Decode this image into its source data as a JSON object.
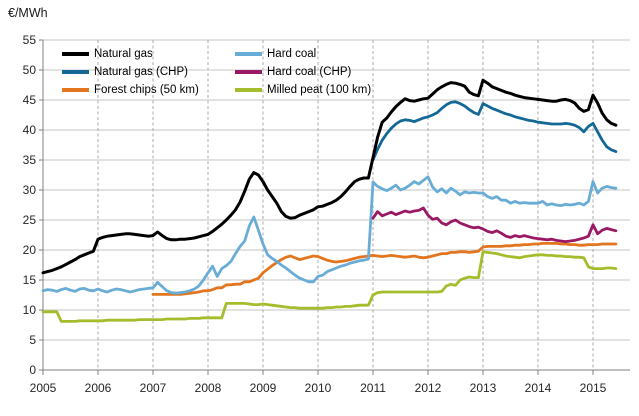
{
  "chart_data": {
    "type": "line",
    "unit_label": "€/MWh",
    "interval": "monthly",
    "x_axis": {
      "tick_years": [
        2005,
        2006,
        2007,
        2008,
        2009,
        2010,
        2011,
        2012,
        2013,
        2014,
        2015
      ],
      "plot_min": 2005.0,
      "plot_max": 2015.67,
      "data_end": 2015.42
    },
    "y_axis": {
      "min": 0,
      "max": 55,
      "tick_step": 5,
      "ticks": [
        0,
        5,
        10,
        15,
        20,
        25,
        30,
        35,
        40,
        45,
        50,
        55
      ]
    },
    "grid": {
      "horizontal": "solid",
      "vertical": "dashed"
    },
    "legend_position": "top-left-inside, two columns",
    "series": [
      {
        "name": "Natural gas",
        "key": "natural-gas",
        "color": "#000000",
        "x_start": 2005.0,
        "values": [
          16.2,
          16.4,
          16.6,
          16.9,
          17.2,
          17.6,
          18.0,
          18.4,
          18.9,
          19.2,
          19.5,
          19.8,
          21.8,
          22.1,
          22.3,
          22.4,
          22.5,
          22.6,
          22.7,
          22.7,
          22.6,
          22.5,
          22.4,
          22.3,
          22.4,
          23.0,
          22.4,
          21.9,
          21.7,
          21.7,
          21.8,
          21.8,
          21.9,
          22.0,
          22.2,
          22.4,
          22.6,
          23.1,
          23.7,
          24.3,
          25.0,
          25.8,
          26.7,
          28.0,
          29.8,
          31.8,
          32.9,
          32.5,
          31.4,
          30.0,
          28.9,
          27.8,
          26.4,
          25.6,
          25.3,
          25.4,
          25.8,
          26.1,
          26.4,
          26.7,
          27.2,
          27.3,
          27.6,
          27.9,
          28.3,
          28.9,
          29.7,
          30.6,
          31.4,
          31.8,
          32.0,
          32.0,
          35.4,
          38.8,
          41.3,
          42.0,
          43.0,
          43.9,
          44.6,
          45.2,
          44.9,
          44.8,
          45.0,
          45.2,
          45.3,
          46.0,
          46.7,
          47.2,
          47.6,
          47.9,
          47.8,
          47.6,
          47.3,
          46.3,
          45.9,
          45.7,
          48.3,
          47.8,
          47.2,
          46.9,
          46.6,
          46.3,
          46.1,
          45.8,
          45.6,
          45.4,
          45.3,
          45.2,
          45.1,
          45.0,
          44.9,
          44.8,
          44.8,
          45.0,
          45.1,
          44.9,
          44.5,
          43.6,
          43.1,
          43.4,
          45.8,
          44.5,
          42.8,
          41.7,
          41.1,
          40.8
        ]
      },
      {
        "name": "Natural gas (CHP)",
        "key": "natural-gas-chp",
        "color": "#146896",
        "x_start": 2011.0,
        "values": [
          35.0,
          36.8,
          38.3,
          39.4,
          40.3,
          41.0,
          41.5,
          41.7,
          41.6,
          41.4,
          41.7,
          42.0,
          42.2,
          42.5,
          42.9,
          43.6,
          44.2,
          44.6,
          44.7,
          44.4,
          44.0,
          43.4,
          42.9,
          42.6,
          44.4,
          44.0,
          43.6,
          43.3,
          43.0,
          42.7,
          42.5,
          42.2,
          42.0,
          41.8,
          41.6,
          41.5,
          41.3,
          41.2,
          41.1,
          41.0,
          41.0,
          41.0,
          41.1,
          41.0,
          40.8,
          40.4,
          39.7,
          40.6,
          41.1,
          39.7,
          38.3,
          37.2,
          36.7,
          36.4
        ]
      },
      {
        "name": "Forest chips (50 km)",
        "key": "forest-chips",
        "color": "#e2751d",
        "x_start": 2007.0,
        "values": [
          12.6,
          12.6,
          12.6,
          12.6,
          12.6,
          12.6,
          12.6,
          12.7,
          12.8,
          12.9,
          13.0,
          13.2,
          13.2,
          13.4,
          13.7,
          13.7,
          14.2,
          14.2,
          14.3,
          14.3,
          14.7,
          14.7,
          15.0,
          15.3,
          16.2,
          16.8,
          17.4,
          17.9,
          18.4,
          18.8,
          19.0,
          18.7,
          18.4,
          18.6,
          18.8,
          19.0,
          18.9,
          18.6,
          18.3,
          18.1,
          18.0,
          18.1,
          18.2,
          18.4,
          18.6,
          18.8,
          18.9,
          19.0,
          19.1,
          19.0,
          18.9,
          19.0,
          19.1,
          19.0,
          18.9,
          18.8,
          18.9,
          19.0,
          18.8,
          18.7,
          18.8,
          19.0,
          19.2,
          19.4,
          19.4,
          19.6,
          19.6,
          19.7,
          19.7,
          19.6,
          19.7,
          19.8,
          20.5,
          20.6,
          20.6,
          20.6,
          20.6,
          20.7,
          20.7,
          20.8,
          20.8,
          20.9,
          20.9,
          21.0,
          21.0,
          21.1,
          21.1,
          21.1,
          21.1,
          21.0,
          21.0,
          20.9,
          20.9,
          20.8,
          20.8,
          20.9,
          20.9,
          20.9,
          21.0,
          21.0,
          21.0,
          21.0
        ]
      },
      {
        "name": "Hard coal",
        "key": "hard-coal",
        "color": "#69acd6",
        "x_start": 2005.0,
        "values": [
          13.2,
          13.4,
          13.3,
          13.1,
          13.4,
          13.6,
          13.3,
          13.1,
          13.5,
          13.6,
          13.3,
          13.2,
          13.5,
          13.2,
          13.0,
          13.3,
          13.5,
          13.4,
          13.2,
          13.0,
          13.2,
          13.4,
          13.5,
          13.6,
          13.7,
          14.6,
          13.9,
          13.2,
          12.9,
          12.8,
          12.9,
          13.0,
          13.2,
          13.5,
          14.0,
          15.0,
          16.2,
          17.3,
          15.6,
          16.9,
          17.4,
          18.1,
          19.4,
          20.6,
          21.5,
          24.0,
          25.5,
          23.3,
          21.0,
          19.2,
          18.6,
          18.1,
          17.5,
          17.0,
          16.4,
          15.8,
          15.3,
          15.0,
          14.7,
          14.7,
          15.6,
          15.8,
          16.4,
          16.7,
          17.0,
          17.3,
          17.5,
          17.8,
          18.0,
          18.2,
          18.3,
          18.5,
          31.3,
          30.6,
          30.2,
          29.9,
          30.3,
          30.8,
          30.0,
          30.3,
          30.8,
          31.4,
          31.0,
          31.6,
          32.2,
          30.5,
          29.7,
          30.2,
          29.5,
          30.3,
          29.8,
          29.2,
          29.7,
          29.5,
          29.6,
          29.5,
          29.5,
          28.9,
          28.6,
          28.9,
          28.3,
          28.3,
          27.8,
          28.1,
          27.8,
          27.9,
          27.8,
          27.8,
          27.8,
          28.1,
          27.5,
          27.7,
          27.5,
          27.4,
          27.6,
          27.5,
          27.6,
          27.8,
          27.5,
          28.1,
          31.4,
          29.5,
          30.3,
          30.6,
          30.4,
          30.3
        ]
      },
      {
        "name": "Hard coal (CHP)",
        "key": "hard-coal-chp",
        "color": "#9b1964",
        "x_start": 2011.0,
        "values": [
          25.3,
          26.4,
          25.7,
          26.0,
          26.3,
          25.9,
          26.2,
          26.5,
          26.3,
          26.5,
          26.6,
          27.0,
          25.8,
          25.1,
          25.3,
          24.5,
          24.2,
          24.7,
          25.0,
          24.5,
          24.2,
          23.9,
          23.7,
          23.8,
          23.5,
          23.1,
          22.9,
          23.2,
          22.8,
          22.3,
          22.1,
          22.4,
          22.2,
          22.4,
          22.2,
          22.0,
          21.9,
          21.8,
          21.7,
          21.8,
          21.6,
          21.5,
          21.4,
          21.5,
          21.6,
          21.8,
          22.0,
          22.3,
          24.2,
          22.7,
          23.3,
          23.6,
          23.4,
          23.2
        ]
      },
      {
        "name": "Milled peat (100 km)",
        "key": "milled-peat",
        "color": "#a3bd2d",
        "x_start": 2005.0,
        "values": [
          9.7,
          9.7,
          9.7,
          9.7,
          8.1,
          8.1,
          8.1,
          8.1,
          8.2,
          8.2,
          8.2,
          8.2,
          8.2,
          8.2,
          8.3,
          8.3,
          8.3,
          8.3,
          8.3,
          8.3,
          8.3,
          8.4,
          8.4,
          8.4,
          8.4,
          8.4,
          8.4,
          8.5,
          8.5,
          8.5,
          8.5,
          8.5,
          8.6,
          8.6,
          8.6,
          8.7,
          8.7,
          8.7,
          8.7,
          8.7,
          11.1,
          11.1,
          11.1,
          11.1,
          11.1,
          11.0,
          10.9,
          10.9,
          11.0,
          10.9,
          10.8,
          10.7,
          10.6,
          10.5,
          10.4,
          10.4,
          10.3,
          10.3,
          10.3,
          10.3,
          10.3,
          10.3,
          10.4,
          10.4,
          10.5,
          10.5,
          10.6,
          10.6,
          10.7,
          10.8,
          10.8,
          10.8,
          12.5,
          12.9,
          13.0,
          13.0,
          13.0,
          13.0,
          13.0,
          13.0,
          13.0,
          13.0,
          13.0,
          13.0,
          13.0,
          13.0,
          13.0,
          13.1,
          14.0,
          14.3,
          14.1,
          15.0,
          15.3,
          15.5,
          15.4,
          15.4,
          19.7,
          19.6,
          19.5,
          19.4,
          19.2,
          19.0,
          18.9,
          18.8,
          18.7,
          18.9,
          19.0,
          19.1,
          19.2,
          19.2,
          19.1,
          19.1,
          19.0,
          19.0,
          18.9,
          18.9,
          18.8,
          18.8,
          18.7,
          17.2,
          16.9,
          16.9,
          16.9,
          17.0,
          17.0,
          16.9
        ]
      }
    ]
  }
}
